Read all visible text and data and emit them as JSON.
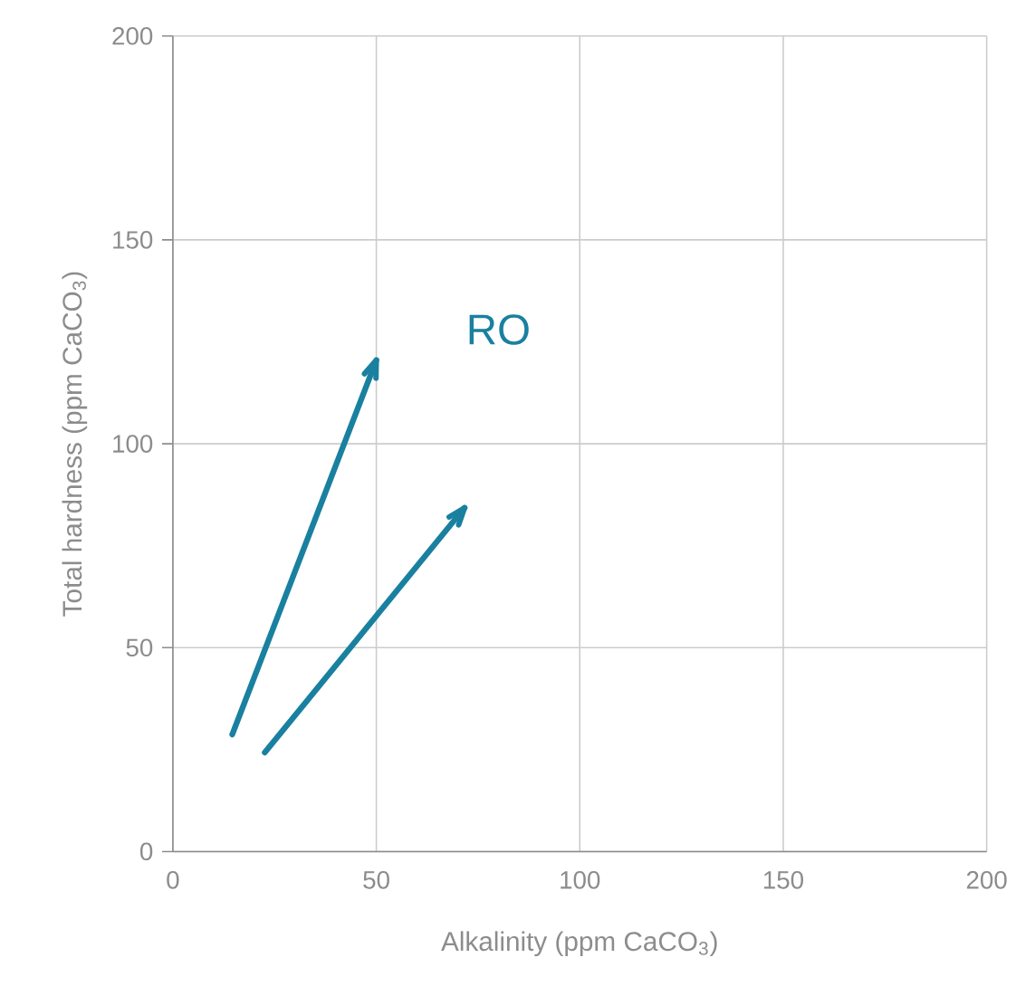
{
  "chart_data": {
    "type": "line",
    "xlabel": "Alkalinity (ppm CaCO$_{3}$)",
    "ylabel": "Total hardness (ppm CaCO$_{3}$)",
    "xlim": [
      0,
      200
    ],
    "ylim": [
      0,
      200
    ],
    "xticks": [
      0,
      50,
      100,
      150,
      200
    ],
    "yticks": [
      0,
      50,
      100,
      150,
      200
    ],
    "grid": true,
    "series": [
      {
        "color": "#1a80a0",
        "x": [
          14.6,
          50
        ],
        "values": [
          28.7,
          120.5
        ]
      },
      {
        "color": "#1a80a0",
        "x": [
          22.6,
          71.7
        ],
        "values": [
          24.3,
          84.3
        ]
      }
    ],
    "annotations": [
      "RO"
    ]
  }
}
